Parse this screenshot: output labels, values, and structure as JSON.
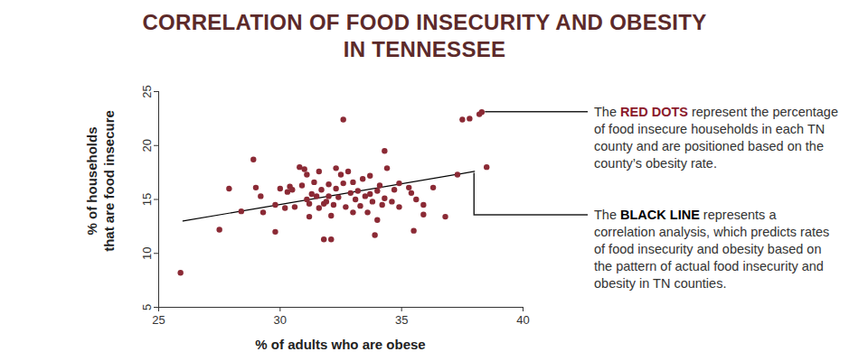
{
  "chart_data": {
    "type": "scatter",
    "title": "CORRELATION OF FOOD INSECURITY AND OBESITY\nIN TENNESSEE",
    "x_label": "% of adults who are obese",
    "y_label": "% of households\nthat are food insecure",
    "x": [
      25.9,
      27.5,
      27.9,
      28.4,
      28.9,
      29.0,
      29.2,
      29.3,
      29.8,
      29.8,
      30.0,
      30.2,
      30.3,
      30.4,
      30.5,
      30.6,
      30.8,
      30.9,
      31.0,
      31.1,
      31.1,
      31.2,
      31.2,
      31.3,
      31.4,
      31.5,
      31.6,
      31.6,
      31.7,
      31.8,
      31.8,
      31.9,
      32.0,
      32.0,
      32.1,
      32.1,
      32.2,
      32.3,
      32.3,
      32.4,
      32.5,
      32.6,
      32.6,
      32.7,
      32.8,
      32.9,
      33.0,
      33.0,
      33.1,
      33.2,
      33.3,
      33.4,
      33.5,
      33.6,
      33.7,
      33.7,
      33.8,
      33.9,
      34.0,
      34.0,
      34.1,
      34.2,
      34.3,
      34.3,
      34.4,
      34.6,
      34.7,
      34.9,
      34.9,
      35.3,
      35.4,
      35.5,
      35.6,
      35.9,
      35.9,
      36.3,
      36.8,
      37.3,
      37.5,
      37.8,
      38.2,
      38.3,
      38.5
    ],
    "values": [
      8.2,
      12.2,
      16.0,
      13.9,
      18.7,
      16.1,
      15.3,
      13.8,
      12.0,
      14.5,
      16.0,
      14.2,
      15.7,
      16.2,
      15.9,
      14.3,
      18.0,
      16.3,
      17.8,
      15.0,
      17.3,
      14.6,
      13.4,
      15.5,
      16.6,
      15.3,
      17.6,
      14.2,
      15.9,
      14.6,
      11.3,
      14.8,
      16.4,
      15.3,
      11.3,
      13.5,
      14.5,
      16.0,
      17.9,
      15.2,
      17.3,
      22.4,
      16.5,
      14.3,
      17.6,
      15.6,
      16.6,
      13.8,
      15.0,
      15.8,
      14.4,
      16.9,
      15.3,
      13.8,
      15.5,
      17.2,
      14.8,
      11.7,
      15.8,
      13.1,
      16.3,
      14.5,
      19.5,
      15.1,
      17.9,
      14.8,
      15.9,
      16.5,
      14.3,
      16.1,
      15.6,
      12.1,
      15.0,
      14.5,
      13.6,
      16.1,
      13.4,
      17.3,
      22.4,
      22.5,
      22.9,
      23.1,
      18.0
    ],
    "color": "#8b2a35",
    "trend": {
      "type": "line",
      "x": [
        26,
        38
      ],
      "values": [
        13.0,
        17.6
      ],
      "color": "#000000"
    },
    "xlim": [
      25,
      40
    ],
    "xticks": [
      25,
      30,
      35,
      40
    ],
    "ylim": [
      5,
      25
    ],
    "yticks": [
      5,
      10,
      15,
      20,
      25
    ],
    "grid": false,
    "annotations": [
      {
        "prefix": "The ",
        "bold": "RED DOTS",
        "text": " represent the percentage of food insecure households in each TN county and are positioned based on the county’s obesity rate.",
        "color": "#8b1a2b"
      },
      {
        "prefix": "The ",
        "bold": "BLACK LINE",
        "text": " represents a correlation analysis, which predicts rates of food insecurity and obesity based on the pattern of actual food insecurity and obesity in TN counties.",
        "color": "#000000"
      }
    ]
  }
}
